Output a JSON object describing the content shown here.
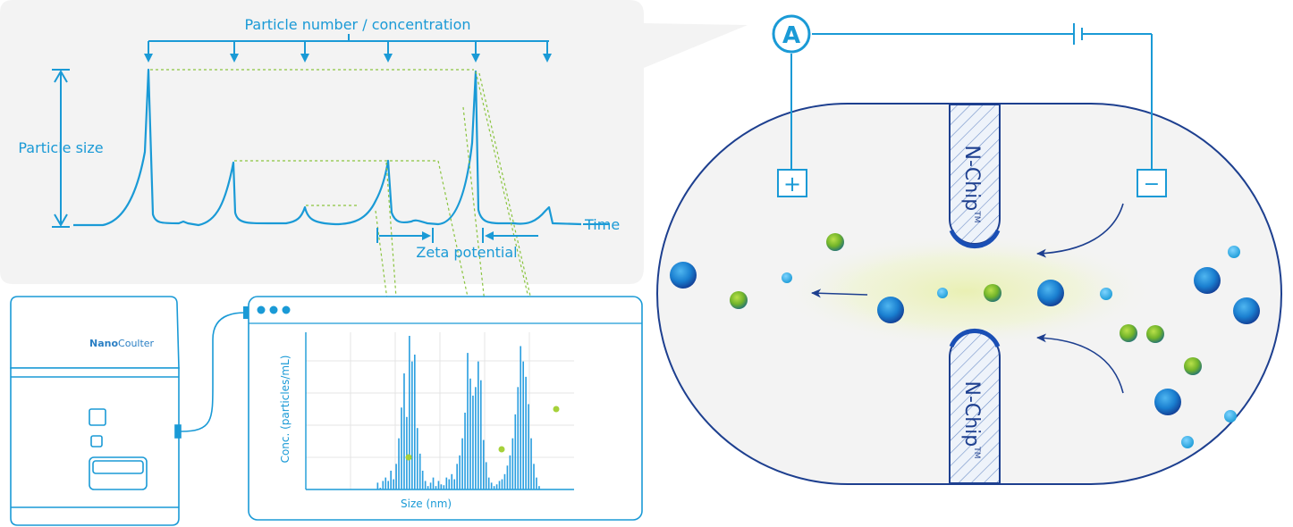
{
  "labels": {
    "particle_number": "Particle number / concentration",
    "particle_size": "Particle size",
    "time": "Time",
    "zeta_potential": "Zeta potential",
    "conc_axis": "Conc. (particles/mL)",
    "size_axis": "Size (nm)"
  },
  "device": {
    "brand_prefix": "Nano",
    "brand_suffix": "Coulter"
  },
  "circuit": {
    "ammeter": "A",
    "plus": "+",
    "minus": "−"
  },
  "chip": {
    "name": "N-Chip",
    "mark": "TM"
  },
  "colors": {
    "accent": "#1a9ad6",
    "navy": "#1d3f8f",
    "green": "#8ac43f",
    "panel": "#f3f3f3"
  },
  "chart_data": {
    "type": "bar",
    "xlabel": "Size (nm)",
    "ylabel": "Conc. (particles/mL)",
    "values": [
      0,
      0,
      0,
      0,
      0,
      0,
      0,
      0,
      0,
      0,
      0,
      0,
      0,
      0,
      0,
      0,
      0,
      0,
      0,
      0,
      0,
      0,
      0,
      0,
      0,
      0,
      8,
      2,
      10,
      14,
      10,
      22,
      12,
      30,
      60,
      96,
      136,
      85,
      180,
      150,
      158,
      72,
      42,
      22,
      10,
      4,
      8,
      14,
      4,
      10,
      6,
      5,
      14,
      12,
      18,
      12,
      30,
      40,
      60,
      90,
      160,
      130,
      110,
      120,
      150,
      128,
      58,
      32,
      14,
      8,
      4,
      6,
      10,
      12,
      18,
      28,
      40,
      60,
      88,
      120,
      168,
      150,
      132,
      100,
      60,
      30,
      14,
      4,
      0,
      0,
      0,
      0,
      0,
      0,
      0,
      0,
      0,
      0,
      0,
      0
    ]
  }
}
